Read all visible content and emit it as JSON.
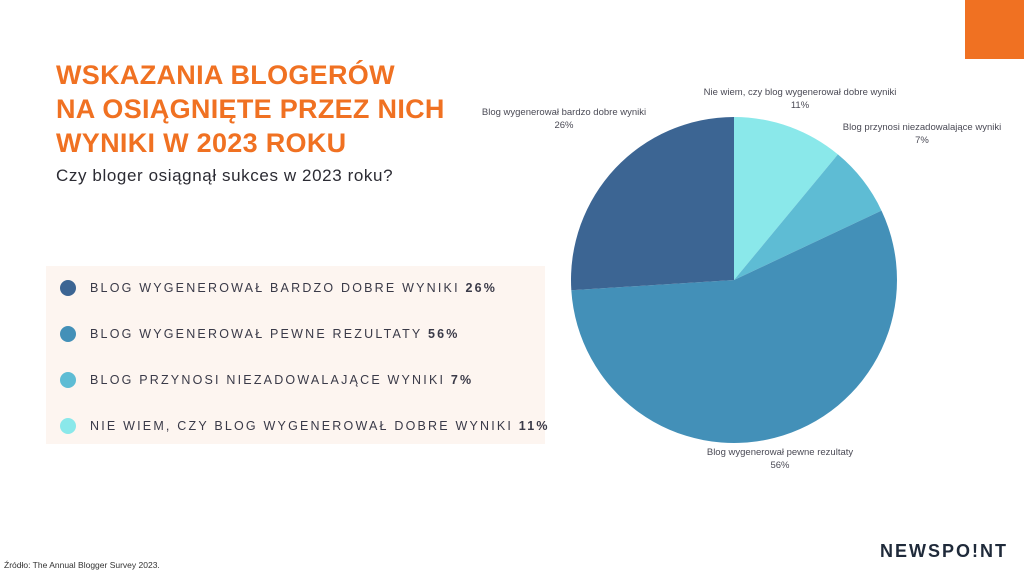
{
  "title_lines": [
    "WSKAZANIA BLOGERÓW",
    "NA OSIĄGNIĘTE PRZEZ NICH",
    "WYNIKI W 2023 ROKU"
  ],
  "subtitle": "Czy bloger osiągnął sukces w 2023 roku?",
  "legend": [
    {
      "label": "BLOG WYGENEROWAŁ BARDZO DOBRE WYNIKI",
      "value": "26%"
    },
    {
      "label": "BLOG WYGENEROWAŁ PEWNE REZULTATY",
      "value": "56%"
    },
    {
      "label": "BLOG PRZYNOSI NIEZADOWALAJĄCE WYNIKI",
      "value": "7%"
    },
    {
      "label": "NIE WIEM, CZY BLOG WYGENEROWAŁ DOBRE WYNIKI",
      "value": "11%"
    }
  ],
  "chart_data": {
    "type": "pie",
    "slices": [
      {
        "label": "Nie wiem, czy blog wygenerował dobre wyniki",
        "value": 11,
        "value_label": "11%",
        "color": "#8ae8ea"
      },
      {
        "label": "Blog przynosi niezadowalające wyniki",
        "value": 7,
        "value_label": "7%",
        "color": "#5ebcd4"
      },
      {
        "label": "Blog wygenerował pewne rezultaty",
        "value": 56,
        "value_label": "56%",
        "color": "#4390b8"
      },
      {
        "label": "Blog wygenerował bardzo dobre wyniki",
        "value": 26,
        "value_label": "26%",
        "color": "#3c6593"
      }
    ],
    "start_angle": "12 o'clock",
    "direction": "clockwise"
  },
  "source": "Źródło: The Annual Blogger Survey 2023.",
  "logo": "NEWSPO!NT",
  "colors": {
    "accent": "#f07122"
  }
}
